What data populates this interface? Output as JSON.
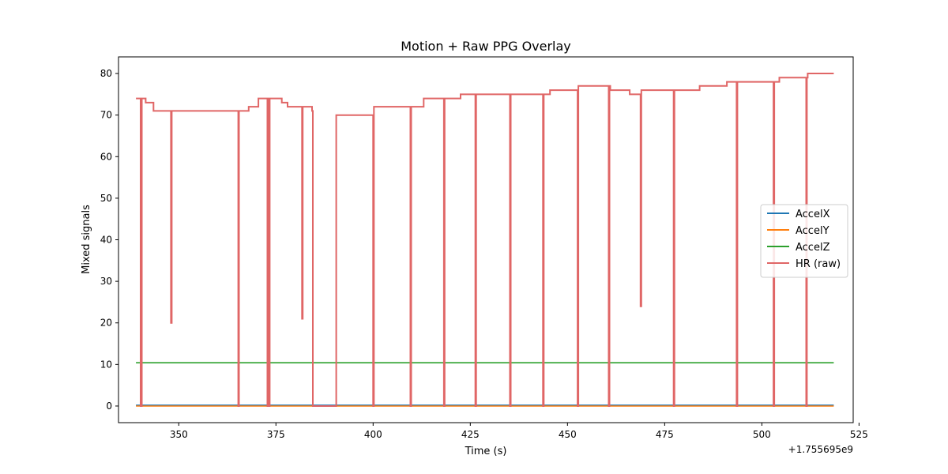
{
  "chart_data": {
    "type": "line",
    "title": "Motion + Raw PPG Overlay",
    "xlabel": "Time (s)",
    "ylabel": "Mixed signals",
    "x_offset_label": "+1.755695e9",
    "xlim": [
      334.5,
      523.5
    ],
    "ylim": [
      -4,
      84
    ],
    "x_ticks": [
      350,
      375,
      400,
      425,
      450,
      475,
      500,
      525
    ],
    "y_ticks": [
      0,
      10,
      20,
      30,
      40,
      50,
      60,
      70,
      80
    ],
    "grid": false,
    "legend_position": "center-right",
    "series": [
      {
        "name": "AccelX",
        "color": "#1f77b4",
        "x": [
          339.0,
          518.5
        ],
        "values": [
          0.2,
          0.2
        ]
      },
      {
        "name": "AccelY",
        "color": "#ff7f0e",
        "x": [
          339.0,
          518.5
        ],
        "values": [
          0.0,
          0.0
        ]
      },
      {
        "name": "AccelZ",
        "color": "#2ca02c",
        "x": [
          339.0,
          518.5
        ],
        "values": [
          10.4,
          10.4
        ]
      },
      {
        "name": "HR (raw)",
        "color": "#e06666",
        "step": true,
        "x": [
          339.0,
          340.2,
          340.5,
          340.7,
          341.5,
          343.5,
          348.0,
          348.2,
          348.4,
          365.3,
          365.5,
          365.7,
          368.0,
          370.5,
          372.8,
          373.0,
          373.2,
          373.4,
          376.5,
          378.0,
          381.7,
          381.9,
          384.3,
          384.5,
          390.5,
          400.0,
          400.2,
          409.6,
          409.8,
          413.0,
          418.2,
          418.4,
          418.6,
          422.5,
          426.3,
          426.5,
          426.7,
          435.2,
          435.4,
          443.7,
          443.9,
          445.5,
          452.6,
          452.8,
          460.6,
          460.8,
          461.0,
          466.0,
          468.8,
          469.0,
          469.2,
          477.3,
          477.5,
          484.0,
          491.0,
          493.5,
          493.7,
          503.0,
          503.2,
          504.5,
          511.4,
          511.6,
          511.8,
          518.5
        ],
        "values": [
          74,
          0,
          74,
          74,
          73,
          71,
          20,
          71,
          71,
          0,
          71,
          71,
          72,
          74,
          0,
          74,
          0,
          74,
          73,
          72,
          21,
          72,
          71,
          0,
          70,
          0,
          72,
          0,
          72,
          74,
          0,
          74,
          74,
          75,
          0,
          75,
          75,
          0,
          75,
          0,
          75,
          76,
          0,
          77,
          0,
          77,
          76,
          75,
          24,
          76,
          76,
          0,
          76,
          77,
          78,
          0,
          78,
          0,
          78,
          79,
          0,
          79,
          80,
          80
        ]
      }
    ]
  }
}
